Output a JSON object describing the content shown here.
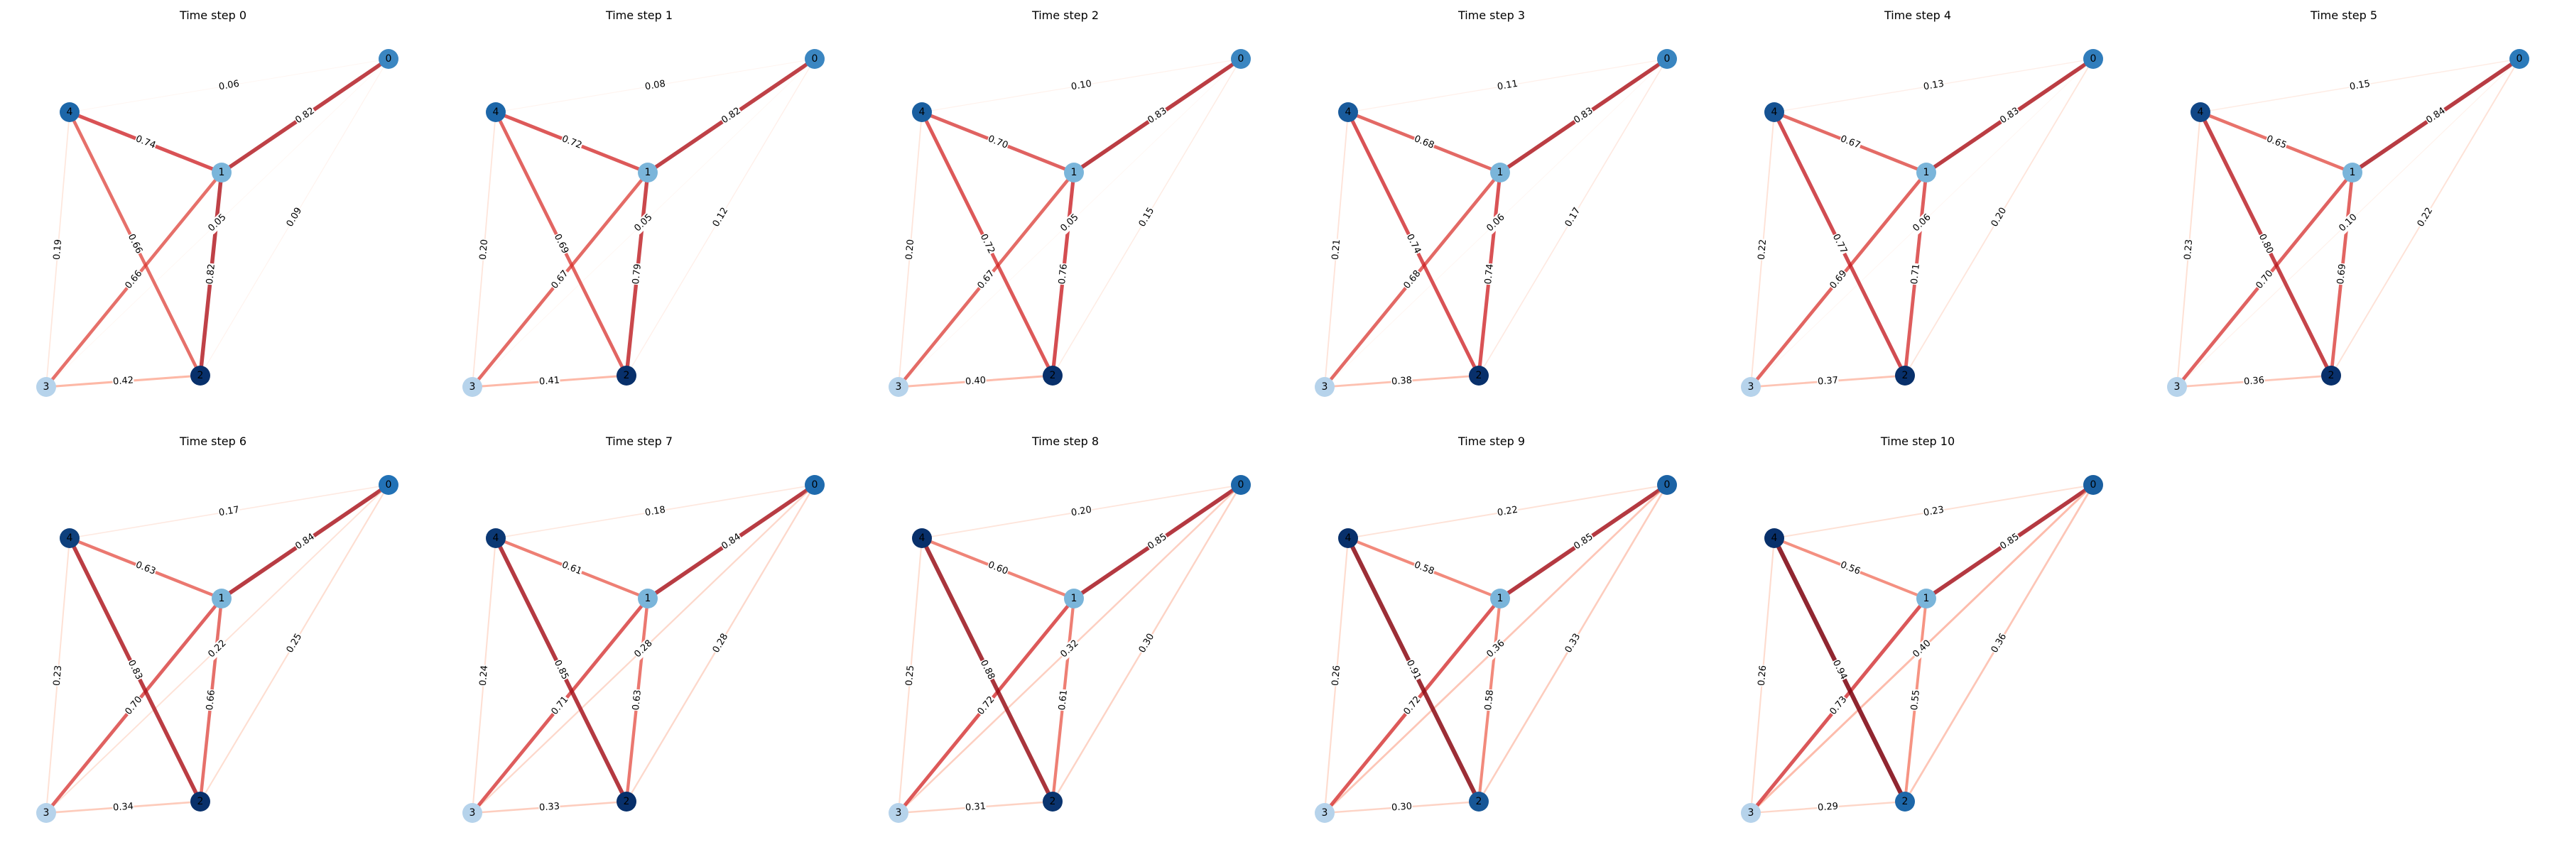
{
  "node_ids": [
    "0",
    "1",
    "2",
    "3",
    "4"
  ],
  "edge_pairs": [
    [
      "0",
      "1"
    ],
    [
      "0",
      "2"
    ],
    [
      "0",
      "3"
    ],
    [
      "0",
      "4"
    ],
    [
      "1",
      "2"
    ],
    [
      "1",
      "3"
    ],
    [
      "1",
      "4"
    ],
    [
      "2",
      "3"
    ],
    [
      "2",
      "4"
    ],
    [
      "3",
      "4"
    ]
  ],
  "colors": {
    "edge_scale": [
      "#fff5f0",
      "#fcbba1",
      "#fb6a4a",
      "#cb181d",
      "#67000d"
    ],
    "node_scale": [
      "#c6dbef",
      "#6baed6",
      "#2171b5",
      "#08306b"
    ]
  },
  "timesteps": [
    {
      "title": "Time step 0",
      "weights": [
        0.82,
        0.09,
        0.05,
        0.06,
        0.82,
        0.66,
        0.74,
        0.42,
        0.66,
        0.19
      ],
      "node_values": [
        0.55,
        0.28,
        1.0,
        0.06,
        0.72
      ]
    },
    {
      "title": "Time step 1",
      "weights": [
        0.82,
        0.12,
        0.05,
        0.08,
        0.79,
        0.67,
        0.72,
        0.41,
        0.69,
        0.2
      ],
      "node_values": [
        0.55,
        0.28,
        1.0,
        0.06,
        0.72
      ]
    },
    {
      "title": "Time step 2",
      "weights": [
        0.83,
        0.15,
        0.05,
        0.1,
        0.76,
        0.67,
        0.7,
        0.4,
        0.72,
        0.2
      ],
      "node_values": [
        0.55,
        0.28,
        1.0,
        0.06,
        0.76
      ]
    },
    {
      "title": "Time step 3",
      "weights": [
        0.83,
        0.17,
        0.06,
        0.11,
        0.74,
        0.68,
        0.68,
        0.38,
        0.74,
        0.21
      ],
      "node_values": [
        0.56,
        0.28,
        1.0,
        0.06,
        0.78
      ]
    },
    {
      "title": "Time step 4",
      "weights": [
        0.83,
        0.2,
        0.06,
        0.13,
        0.71,
        0.69,
        0.67,
        0.37,
        0.77,
        0.22
      ],
      "node_values": [
        0.6,
        0.28,
        1.0,
        0.06,
        0.82
      ]
    },
    {
      "title": "Time step 5",
      "weights": [
        0.84,
        0.22,
        0.1,
        0.15,
        0.69,
        0.7,
        0.65,
        0.36,
        0.8,
        0.23
      ],
      "node_values": [
        0.62,
        0.28,
        1.0,
        0.06,
        0.88
      ]
    },
    {
      "title": "Time step 6",
      "weights": [
        0.84,
        0.25,
        0.22,
        0.17,
        0.66,
        0.7,
        0.63,
        0.34,
        0.83,
        0.23
      ],
      "node_values": [
        0.66,
        0.28,
        1.0,
        0.06,
        0.92
      ]
    },
    {
      "title": "Time step 7",
      "weights": [
        0.84,
        0.28,
        0.28,
        0.18,
        0.63,
        0.71,
        0.61,
        0.33,
        0.85,
        0.24
      ],
      "node_values": [
        0.7,
        0.28,
        1.0,
        0.06,
        0.96
      ]
    },
    {
      "title": "Time step 8",
      "weights": [
        0.85,
        0.3,
        0.32,
        0.2,
        0.61,
        0.72,
        0.6,
        0.31,
        0.88,
        0.25
      ],
      "node_values": [
        0.72,
        0.28,
        0.98,
        0.06,
        1.0
      ]
    },
    {
      "title": "Time step 9",
      "weights": [
        0.85,
        0.33,
        0.36,
        0.22,
        0.58,
        0.72,
        0.58,
        0.3,
        0.91,
        0.26
      ],
      "node_values": [
        0.74,
        0.28,
        0.8,
        0.06,
        1.0
      ]
    },
    {
      "title": "Time step 10",
      "weights": [
        0.85,
        0.36,
        0.4,
        0.23,
        0.55,
        0.73,
        0.56,
        0.29,
        0.94,
        0.26
      ],
      "node_values": [
        0.76,
        0.28,
        0.72,
        0.06,
        1.0
      ]
    }
  ]
}
